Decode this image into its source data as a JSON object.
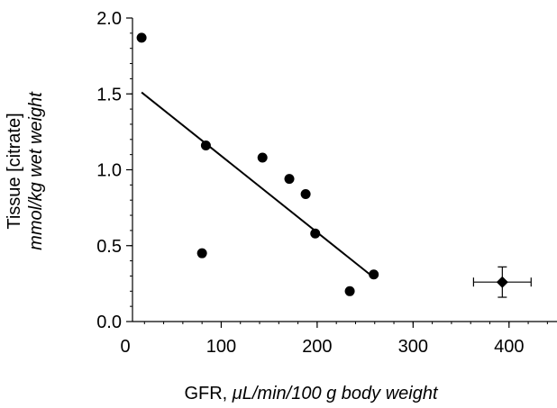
{
  "chart_data": {
    "type": "scatter",
    "x_label": {
      "prefix": "GFR, ",
      "italic": "μL/min/100 g body weight"
    },
    "y_label": {
      "line1": "Tissue [citrate]",
      "line2": "mmol/kg wet weight"
    },
    "xlim": [
      0,
      450
    ],
    "ylim": [
      0,
      2.0
    ],
    "x_ticks": [
      0,
      100,
      200,
      300,
      400
    ],
    "x_tick_labels": [
      "0",
      "100",
      "200",
      "300",
      "400"
    ],
    "y_ticks": [
      0,
      0.5,
      1.0,
      1.5,
      2.0
    ],
    "y_tick_labels": [
      "0.0",
      "0.5",
      "1.0",
      "1.5",
      "2.0"
    ],
    "series": [
      {
        "marker": "circle",
        "points": [
          {
            "x": 17,
            "y": 1.87
          },
          {
            "x": 80,
            "y": 0.45
          },
          {
            "x": 84,
            "y": 1.16
          },
          {
            "x": 143,
            "y": 1.08
          },
          {
            "x": 171,
            "y": 0.94
          },
          {
            "x": 188,
            "y": 0.84
          },
          {
            "x": 198,
            "y": 0.58
          },
          {
            "x": 234,
            "y": 0.2
          },
          {
            "x": 259,
            "y": 0.31
          }
        ]
      },
      {
        "marker": "diamond",
        "points": [
          {
            "x": 393,
            "y": 0.26,
            "x_err": 30,
            "y_err": 0.1
          }
        ]
      }
    ],
    "fit_line": {
      "x": [
        17,
        259
      ],
      "y": [
        1.51,
        0.29
      ]
    },
    "grid": false,
    "legend": "none"
  }
}
